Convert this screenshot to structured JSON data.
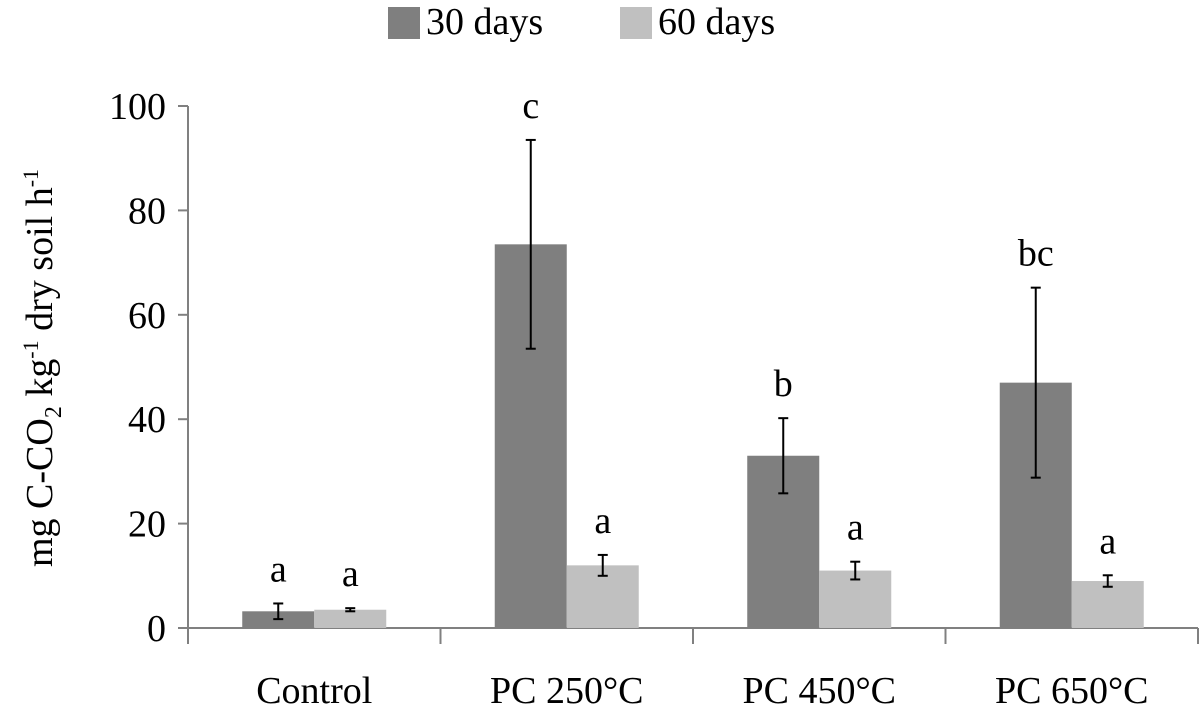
{
  "chart_data": {
    "type": "bar",
    "title": "",
    "xlabel": "",
    "ylabel": {
      "parts": [
        "mg C-CO",
        "2",
        " kg",
        "-1",
        " dry soil h",
        "-1"
      ]
    },
    "categories": [
      "Control",
      "PC 250°C",
      "PC 450°C",
      "PC 650°C"
    ],
    "ylim": [
      0,
      100
    ],
    "yticks": [
      0,
      20,
      40,
      60,
      80,
      100
    ],
    "ytick_labels": [
      "0",
      "20",
      "40",
      "60",
      "80",
      "100"
    ],
    "grid": false,
    "legend_position": "top",
    "series": [
      {
        "name": "30 days",
        "color": "#7f7f7f",
        "values": [
          3.2,
          73.5,
          33,
          47
        ],
        "errors": [
          1.5,
          20,
          7.2,
          18.2
        ],
        "letters": [
          "a",
          "c",
          "b",
          "bc"
        ]
      },
      {
        "name": "60 days",
        "color": "#c0c0c0",
        "values": [
          3.5,
          12,
          11,
          9
        ],
        "errors": [
          0.3,
          2,
          1.7,
          1.1
        ],
        "letters": [
          "a",
          "a",
          "a",
          "a"
        ]
      }
    ]
  }
}
